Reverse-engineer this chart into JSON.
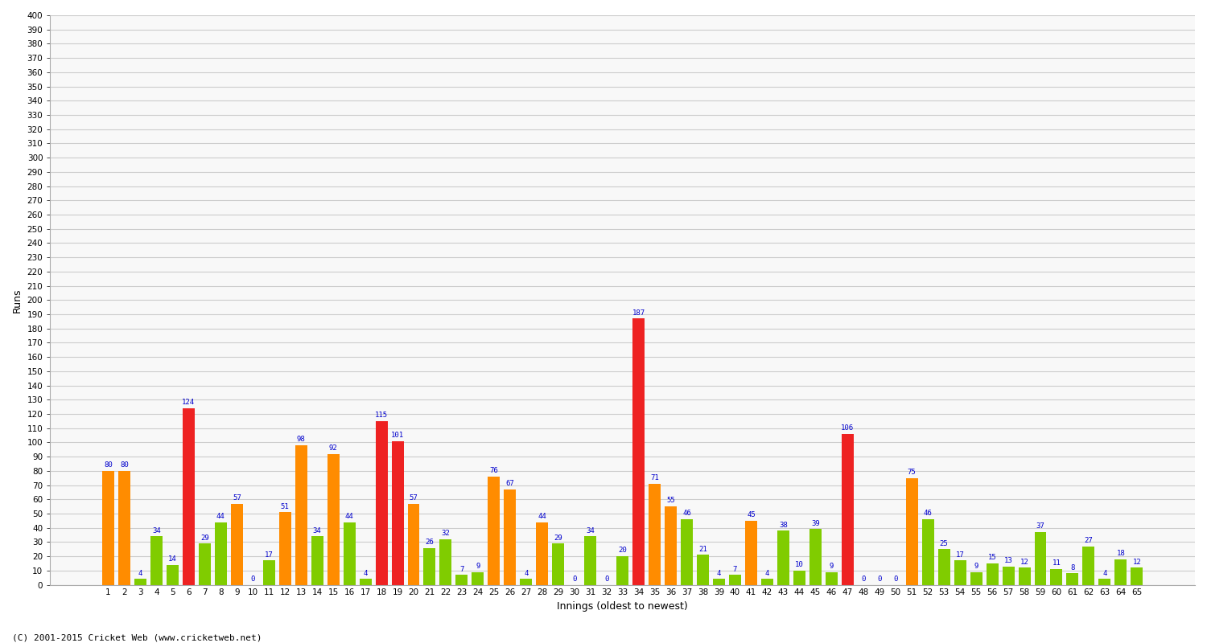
{
  "xlabel": "Innings (oldest to newest)",
  "ylabel": "Runs",
  "ylim": [
    0,
    400
  ],
  "yticks": [
    0,
    10,
    20,
    30,
    40,
    50,
    60,
    70,
    80,
    90,
    100,
    110,
    120,
    130,
    140,
    150,
    160,
    170,
    180,
    190,
    200,
    210,
    220,
    230,
    240,
    250,
    260,
    270,
    280,
    290,
    300,
    310,
    320,
    330,
    340,
    350,
    360,
    370,
    380,
    390,
    400
  ],
  "innings": [
    1,
    2,
    3,
    4,
    5,
    6,
    7,
    8,
    9,
    10,
    11,
    12,
    13,
    14,
    15,
    16,
    17,
    18,
    19,
    20,
    21,
    22,
    23,
    24,
    25,
    26,
    27,
    28,
    29,
    30,
    31,
    32,
    33,
    34,
    35,
    36,
    37,
    38,
    39,
    40,
    41,
    42,
    43,
    44,
    45,
    46,
    47,
    48,
    49,
    50,
    51,
    52,
    53,
    54,
    55,
    56,
    57,
    58,
    59,
    60,
    61,
    62,
    63,
    64,
    65
  ],
  "values": [
    80,
    80,
    4,
    34,
    14,
    124,
    29,
    44,
    57,
    0,
    17,
    51,
    98,
    34,
    92,
    44,
    4,
    115,
    101,
    57,
    26,
    32,
    7,
    9,
    76,
    67,
    4,
    44,
    29,
    0,
    34,
    0,
    20,
    187,
    71,
    55,
    46,
    21,
    4,
    7,
    45,
    4,
    38,
    10,
    39,
    9,
    106,
    0,
    0,
    0,
    75,
    46,
    25,
    17,
    9,
    15,
    13,
    12,
    37,
    11,
    8,
    27,
    4,
    18,
    12
  ],
  "colors": [
    "orange",
    "orange",
    "limegreen",
    "limegreen",
    "limegreen",
    "red",
    "limegreen",
    "limegreen",
    "orange",
    "limegreen",
    "limegreen",
    "orange",
    "orange",
    "limegreen",
    "orange",
    "limegreen",
    "limegreen",
    "red",
    "red",
    "orange",
    "limegreen",
    "limegreen",
    "limegreen",
    "limegreen",
    "orange",
    "orange",
    "limegreen",
    "orange",
    "limegreen",
    "limegreen",
    "limegreen",
    "limegreen",
    "limegreen",
    "red",
    "orange",
    "orange",
    "limegreen",
    "limegreen",
    "limegreen",
    "limegreen",
    "orange",
    "limegreen",
    "limegreen",
    "limegreen",
    "limegreen",
    "limegreen",
    "red",
    "limegreen",
    "limegreen",
    "limegreen",
    "orange",
    "limegreen",
    "limegreen",
    "limegreen",
    "limegreen",
    "limegreen",
    "limegreen",
    "limegreen",
    "limegreen",
    "limegreen",
    "limegreen",
    "limegreen",
    "limegreen",
    "limegreen",
    "limegreen"
  ],
  "color_orange": "#FF8C00",
  "color_green": "#80CC00",
  "color_red": "#EE2222",
  "background_color": "#ffffff",
  "plot_bg_color": "#f8f8f8",
  "grid_color": "#cccccc",
  "title_fontsize": 11,
  "axis_label_fontsize": 9,
  "tick_fontsize": 7.5,
  "value_fontsize": 6.5,
  "footer": "(C) 2001-2015 Cricket Web (www.cricketweb.net)"
}
